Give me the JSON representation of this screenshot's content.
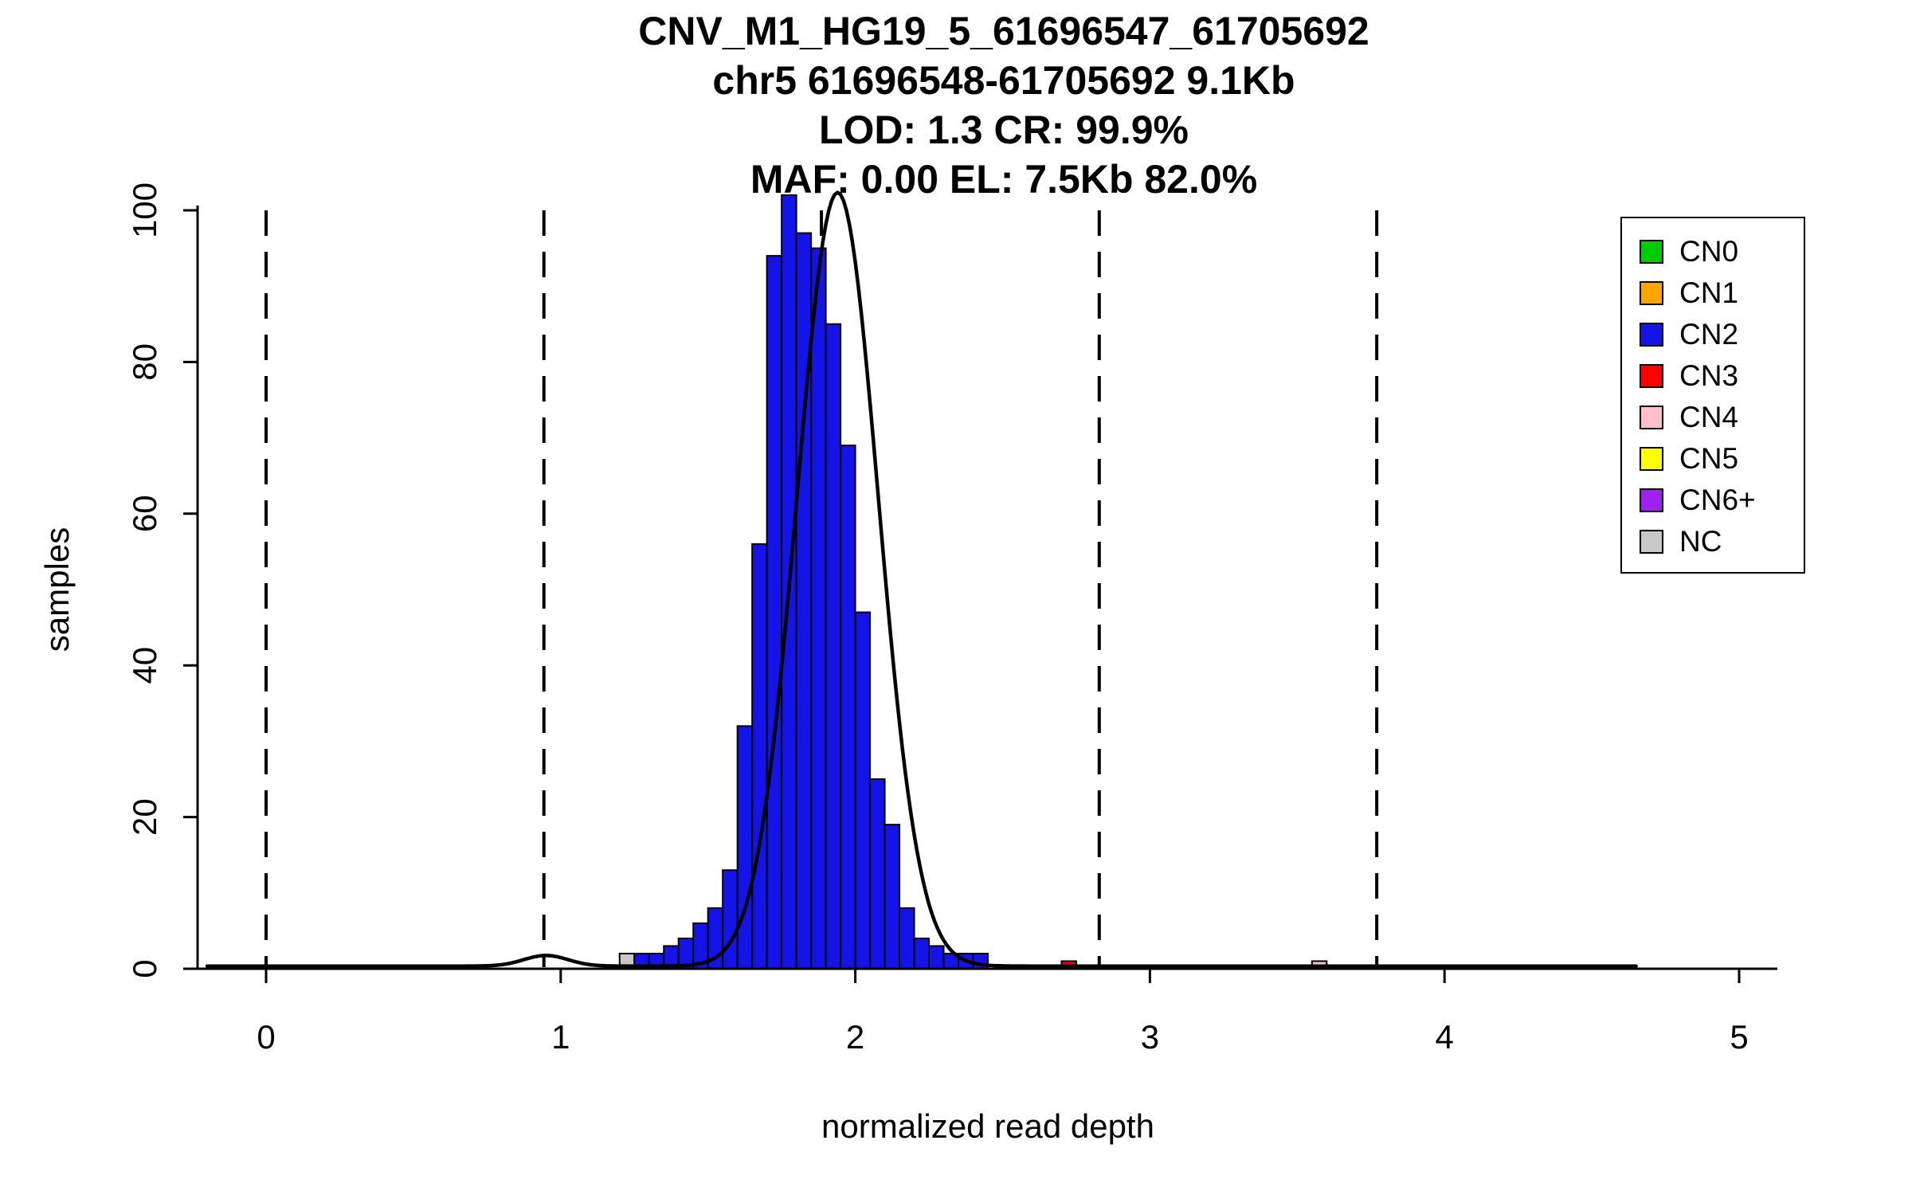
{
  "title": {
    "line1": "CNV_M1_HG19_5_61696547_61705692",
    "line2": "chr5 61696548-61705692 9.1Kb",
    "line3": "LOD: 1.3 CR: 99.9%",
    "line4": "MAF: 0.00 EL: 7.5Kb 82.0%"
  },
  "chart_data": {
    "type": "bar",
    "title": "CNV_M1_HG19_5_61696547_61705692 chr5 61696548-61705692 9.1Kb LOD: 1.3 CR: 99.9% MAF: 0.00 EL: 7.5Kb 82.0%",
    "xlabel": "normalized read depth",
    "ylabel": "samples",
    "xlim": [
      -0.25,
      5.15
    ],
    "ylim": [
      0,
      100
    ],
    "x_ticks": [
      0,
      1,
      2,
      3,
      4,
      5
    ],
    "y_ticks": [
      0,
      20,
      40,
      60,
      80,
      100
    ],
    "grid": false,
    "legend_position": "top-right",
    "bin_width": 0.05,
    "dashed_lines_x": [
      0,
      0.943,
      1.885,
      2.828,
      3.77
    ],
    "bars": [
      {
        "x": 1.225,
        "count": 2,
        "cn": "NC"
      },
      {
        "x": 1.275,
        "count": 2,
        "cn": "CN2"
      },
      {
        "x": 1.325,
        "count": 2,
        "cn": "CN2"
      },
      {
        "x": 1.375,
        "count": 3,
        "cn": "CN2"
      },
      {
        "x": 1.425,
        "count": 4,
        "cn": "CN2"
      },
      {
        "x": 1.475,
        "count": 6,
        "cn": "CN2"
      },
      {
        "x": 1.525,
        "count": 8,
        "cn": "CN2"
      },
      {
        "x": 1.575,
        "count": 13,
        "cn": "CN2"
      },
      {
        "x": 1.625,
        "count": 32,
        "cn": "CN2"
      },
      {
        "x": 1.675,
        "count": 56,
        "cn": "CN2"
      },
      {
        "x": 1.725,
        "count": 94,
        "cn": "CN2"
      },
      {
        "x": 1.775,
        "count": 102,
        "cn": "CN2"
      },
      {
        "x": 1.825,
        "count": 97,
        "cn": "CN2"
      },
      {
        "x": 1.875,
        "count": 95,
        "cn": "CN2"
      },
      {
        "x": 1.925,
        "count": 85,
        "cn": "CN2"
      },
      {
        "x": 1.975,
        "count": 69,
        "cn": "CN2"
      },
      {
        "x": 2.025,
        "count": 47,
        "cn": "CN2"
      },
      {
        "x": 2.075,
        "count": 25,
        "cn": "CN2"
      },
      {
        "x": 2.125,
        "count": 19,
        "cn": "CN2"
      },
      {
        "x": 2.175,
        "count": 8,
        "cn": "CN2"
      },
      {
        "x": 2.225,
        "count": 4,
        "cn": "CN2"
      },
      {
        "x": 2.275,
        "count": 3,
        "cn": "CN2"
      },
      {
        "x": 2.325,
        "count": 2,
        "cn": "CN2"
      },
      {
        "x": 2.375,
        "count": 2,
        "cn": "CN2"
      },
      {
        "x": 2.425,
        "count": 2,
        "cn": "CN2"
      },
      {
        "x": 2.725,
        "count": 1,
        "cn": "CN3"
      },
      {
        "x": 3.575,
        "count": 1,
        "cn": "CN4"
      }
    ],
    "fit_curve": {
      "baseline": 0.35,
      "x_range": [
        -0.2,
        4.65
      ],
      "components": [
        {
          "amp": 102.0,
          "mean": 1.94,
          "sd": 0.138
        },
        {
          "amp": 1.4,
          "mean": 0.95,
          "sd": 0.075
        }
      ]
    },
    "colors": {
      "CN0": "#00CC00",
      "CN1": "#FFA500",
      "CN2": "#1414E8",
      "CN3": "#FF0000",
      "CN4": "#FFC0CB",
      "CN5": "#FFFF00",
      "CN6+": "#A020F0",
      "NC": "#C8C8C8",
      "curve": "#000000",
      "axis": "#000000"
    }
  },
  "legend": {
    "items": [
      {
        "label": "CN0",
        "cn": "CN0"
      },
      {
        "label": "CN1",
        "cn": "CN1"
      },
      {
        "label": "CN2",
        "cn": "CN2"
      },
      {
        "label": "CN3",
        "cn": "CN3"
      },
      {
        "label": "CN4",
        "cn": "CN4"
      },
      {
        "label": "CN5",
        "cn": "CN5"
      },
      {
        "label": "CN6+",
        "cn": "CN6+"
      },
      {
        "label": "NC",
        "cn": "NC"
      }
    ]
  }
}
